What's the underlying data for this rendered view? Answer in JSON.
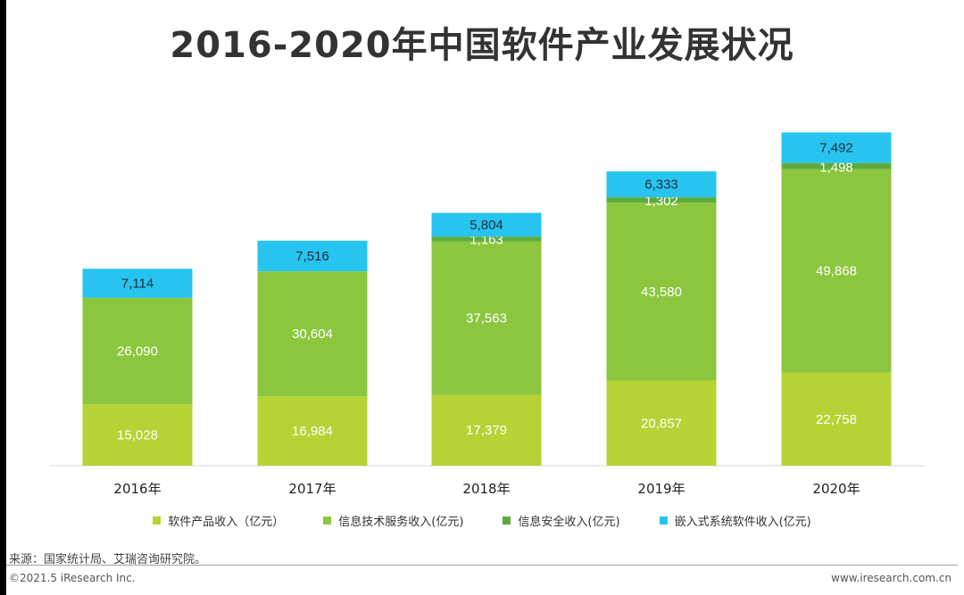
{
  "title": "2016-2020年中国软件产业发展状况",
  "colors": {
    "software_product": "#b5d334",
    "it_service": "#8cc63f",
    "info_security": "#5dab3f",
    "embedded": "#27c4ef"
  },
  "chart_data": {
    "type": "bar",
    "stacked": true,
    "categories": [
      "2016年",
      "2017年",
      "2018年",
      "2019年",
      "2020年"
    ],
    "series": [
      {
        "name": "软件产品收入（亿元）",
        "labels": [
          "15,028",
          "16,984",
          "17,379",
          "20,857",
          "22,758"
        ],
        "values": [
          15028,
          16984,
          17379,
          20857,
          22758
        ]
      },
      {
        "name": "信息技术服务收入(亿元)",
        "labels": [
          "26,090",
          "30,604",
          "37,563",
          "43,580",
          "49,868"
        ],
        "values": [
          26090,
          30604,
          37563,
          43580,
          49868
        ]
      },
      {
        "name": "信息安全收入(亿元)",
        "labels": [
          "",
          "",
          "1,163",
          "1,302",
          "1,498"
        ],
        "values": [
          null,
          null,
          1163,
          1302,
          1498
        ]
      },
      {
        "name": "嵌入式系统软件收入(亿元)",
        "labels": [
          "7,114",
          "7,516",
          "5,804",
          "6,333",
          "7,492"
        ],
        "values": [
          7114,
          7516,
          5804,
          6333,
          7492
        ]
      }
    ],
    "ylim": [
      0,
      84000
    ],
    "grid": false,
    "legend_position": "bottom"
  },
  "source": "来源：国家统计局、艾瑞咨询研究院。",
  "copyright": "©2021.5 iResearch Inc.",
  "website": "www.iresearch.com.cn"
}
